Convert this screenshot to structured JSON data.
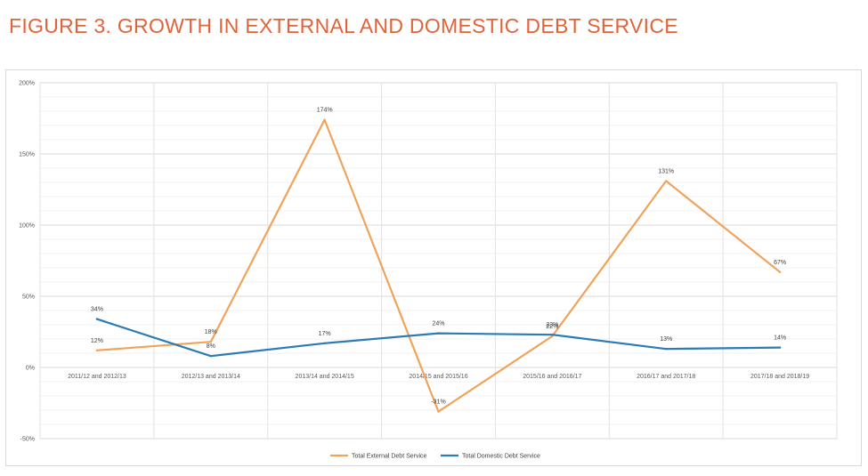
{
  "figure": {
    "title": "FIGURE 3.  GROWTH IN EXTERNAL AND DOMESTIC DEBT SERVICE"
  },
  "chart_data": {
    "type": "line",
    "title": "",
    "xlabel": "",
    "ylabel": "",
    "categories": [
      "2011/12 and 2012/13",
      "2012/13 and 2013/14",
      "2013/14 and 2014/15",
      "2014/15 and 2015/16",
      "2015/16 and 2016/17",
      "2016/17 and 2017/18",
      "2017/18 and 2018/19"
    ],
    "series": [
      {
        "name": "Total External Debt Service",
        "color": "#f0a35a",
        "values": [
          12,
          18,
          174,
          -31,
          22,
          131,
          67
        ],
        "labels": [
          "12%",
          "18%",
          "174%",
          "-31%",
          "22%",
          "131%",
          "67%"
        ]
      },
      {
        "name": "Total Domestic Debt Service",
        "color": "#2b7bb5",
        "values": [
          34,
          8,
          17,
          24,
          23,
          13,
          14
        ],
        "labels": [
          "34%",
          "8%",
          "17%",
          "24%",
          "23%",
          "13%",
          "14%"
        ]
      }
    ],
    "ylim": [
      -50,
      200
    ],
    "yticks": [
      -50,
      0,
      50,
      100,
      150,
      200
    ],
    "ytick_labels": [
      "-50%",
      "0%",
      "50%",
      "100%",
      "150%",
      "200%"
    ],
    "grid": true,
    "legend_position": "bottom"
  }
}
